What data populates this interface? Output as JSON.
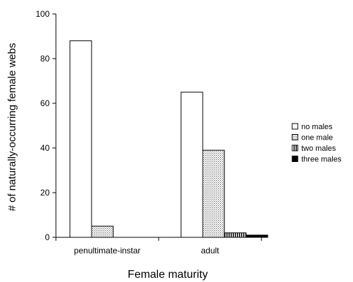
{
  "chart_data": {
    "type": "bar",
    "title": "",
    "xlabel": "Female maturity",
    "ylabel": "# of naturally-occurring female webs",
    "ylim": [
      0,
      100
    ],
    "yticks": [
      0,
      20,
      40,
      60,
      80,
      100
    ],
    "grid": false,
    "legend": "right",
    "categories": [
      "penultimate-instar",
      "adult"
    ],
    "series": [
      {
        "name": "no males",
        "values": [
          88,
          65
        ],
        "pattern": "white"
      },
      {
        "name": "one male",
        "values": [
          5,
          39
        ],
        "pattern": "dots"
      },
      {
        "name": "two males",
        "values": [
          0,
          2
        ],
        "pattern": "vertical-stripes"
      },
      {
        "name": "three males",
        "values": [
          0,
          1
        ],
        "pattern": "black"
      }
    ]
  }
}
